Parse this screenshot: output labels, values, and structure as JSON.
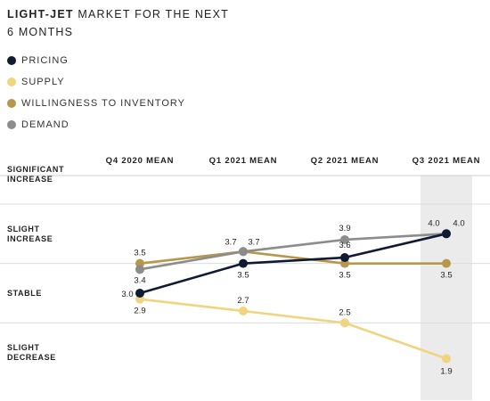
{
  "title": {
    "bold": "LIGHT-JET",
    "rest": " MARKET FOR THE NEXT",
    "line2": "6 MONTHS"
  },
  "chart_data": {
    "type": "line",
    "categories": [
      "Q4 2020 MEAN",
      "Q1 2021 MEAN",
      "Q2 2021 MEAN",
      "Q3 2021 MEAN"
    ],
    "y_levels": [
      {
        "value": 5,
        "lines": [
          "SIGNIFICANT",
          "INCREASE"
        ]
      },
      {
        "value": 4,
        "lines": [
          "SLIGHT",
          "INCREASE"
        ]
      },
      {
        "value": 3,
        "lines": [
          "STABLE"
        ]
      },
      {
        "value": 2,
        "lines": [
          "SLIGHT",
          "DECREASE"
        ]
      }
    ],
    "ylim": [
      1.5,
      5.0
    ],
    "highlight_category": "Q3 2021 MEAN",
    "series": [
      {
        "name": "PRICING",
        "color": "#0f1a33",
        "values": [
          3.0,
          3.5,
          3.6,
          4.0
        ],
        "labels": [
          "3.0",
          "3.5",
          "3.6",
          "4.0"
        ]
      },
      {
        "name": "SUPPLY",
        "color": "#f0d480",
        "values": [
          2.9,
          2.7,
          2.5,
          1.9
        ],
        "labels": [
          "2.9",
          "2.7",
          "2.5",
          "1.9"
        ]
      },
      {
        "name": "WILLINGNESS TO INVENTORY",
        "color": "#b8964a",
        "values": [
          3.5,
          3.7,
          3.5,
          3.5
        ],
        "labels": [
          "3.5",
          "3.7",
          "3.5",
          "3.5"
        ]
      },
      {
        "name": "DEMAND",
        "color": "#8c8c8c",
        "values": [
          3.4,
          3.7,
          3.9,
          4.0
        ],
        "labels": [
          "3.4",
          "3.7",
          "3.9",
          "4.0"
        ]
      }
    ]
  }
}
